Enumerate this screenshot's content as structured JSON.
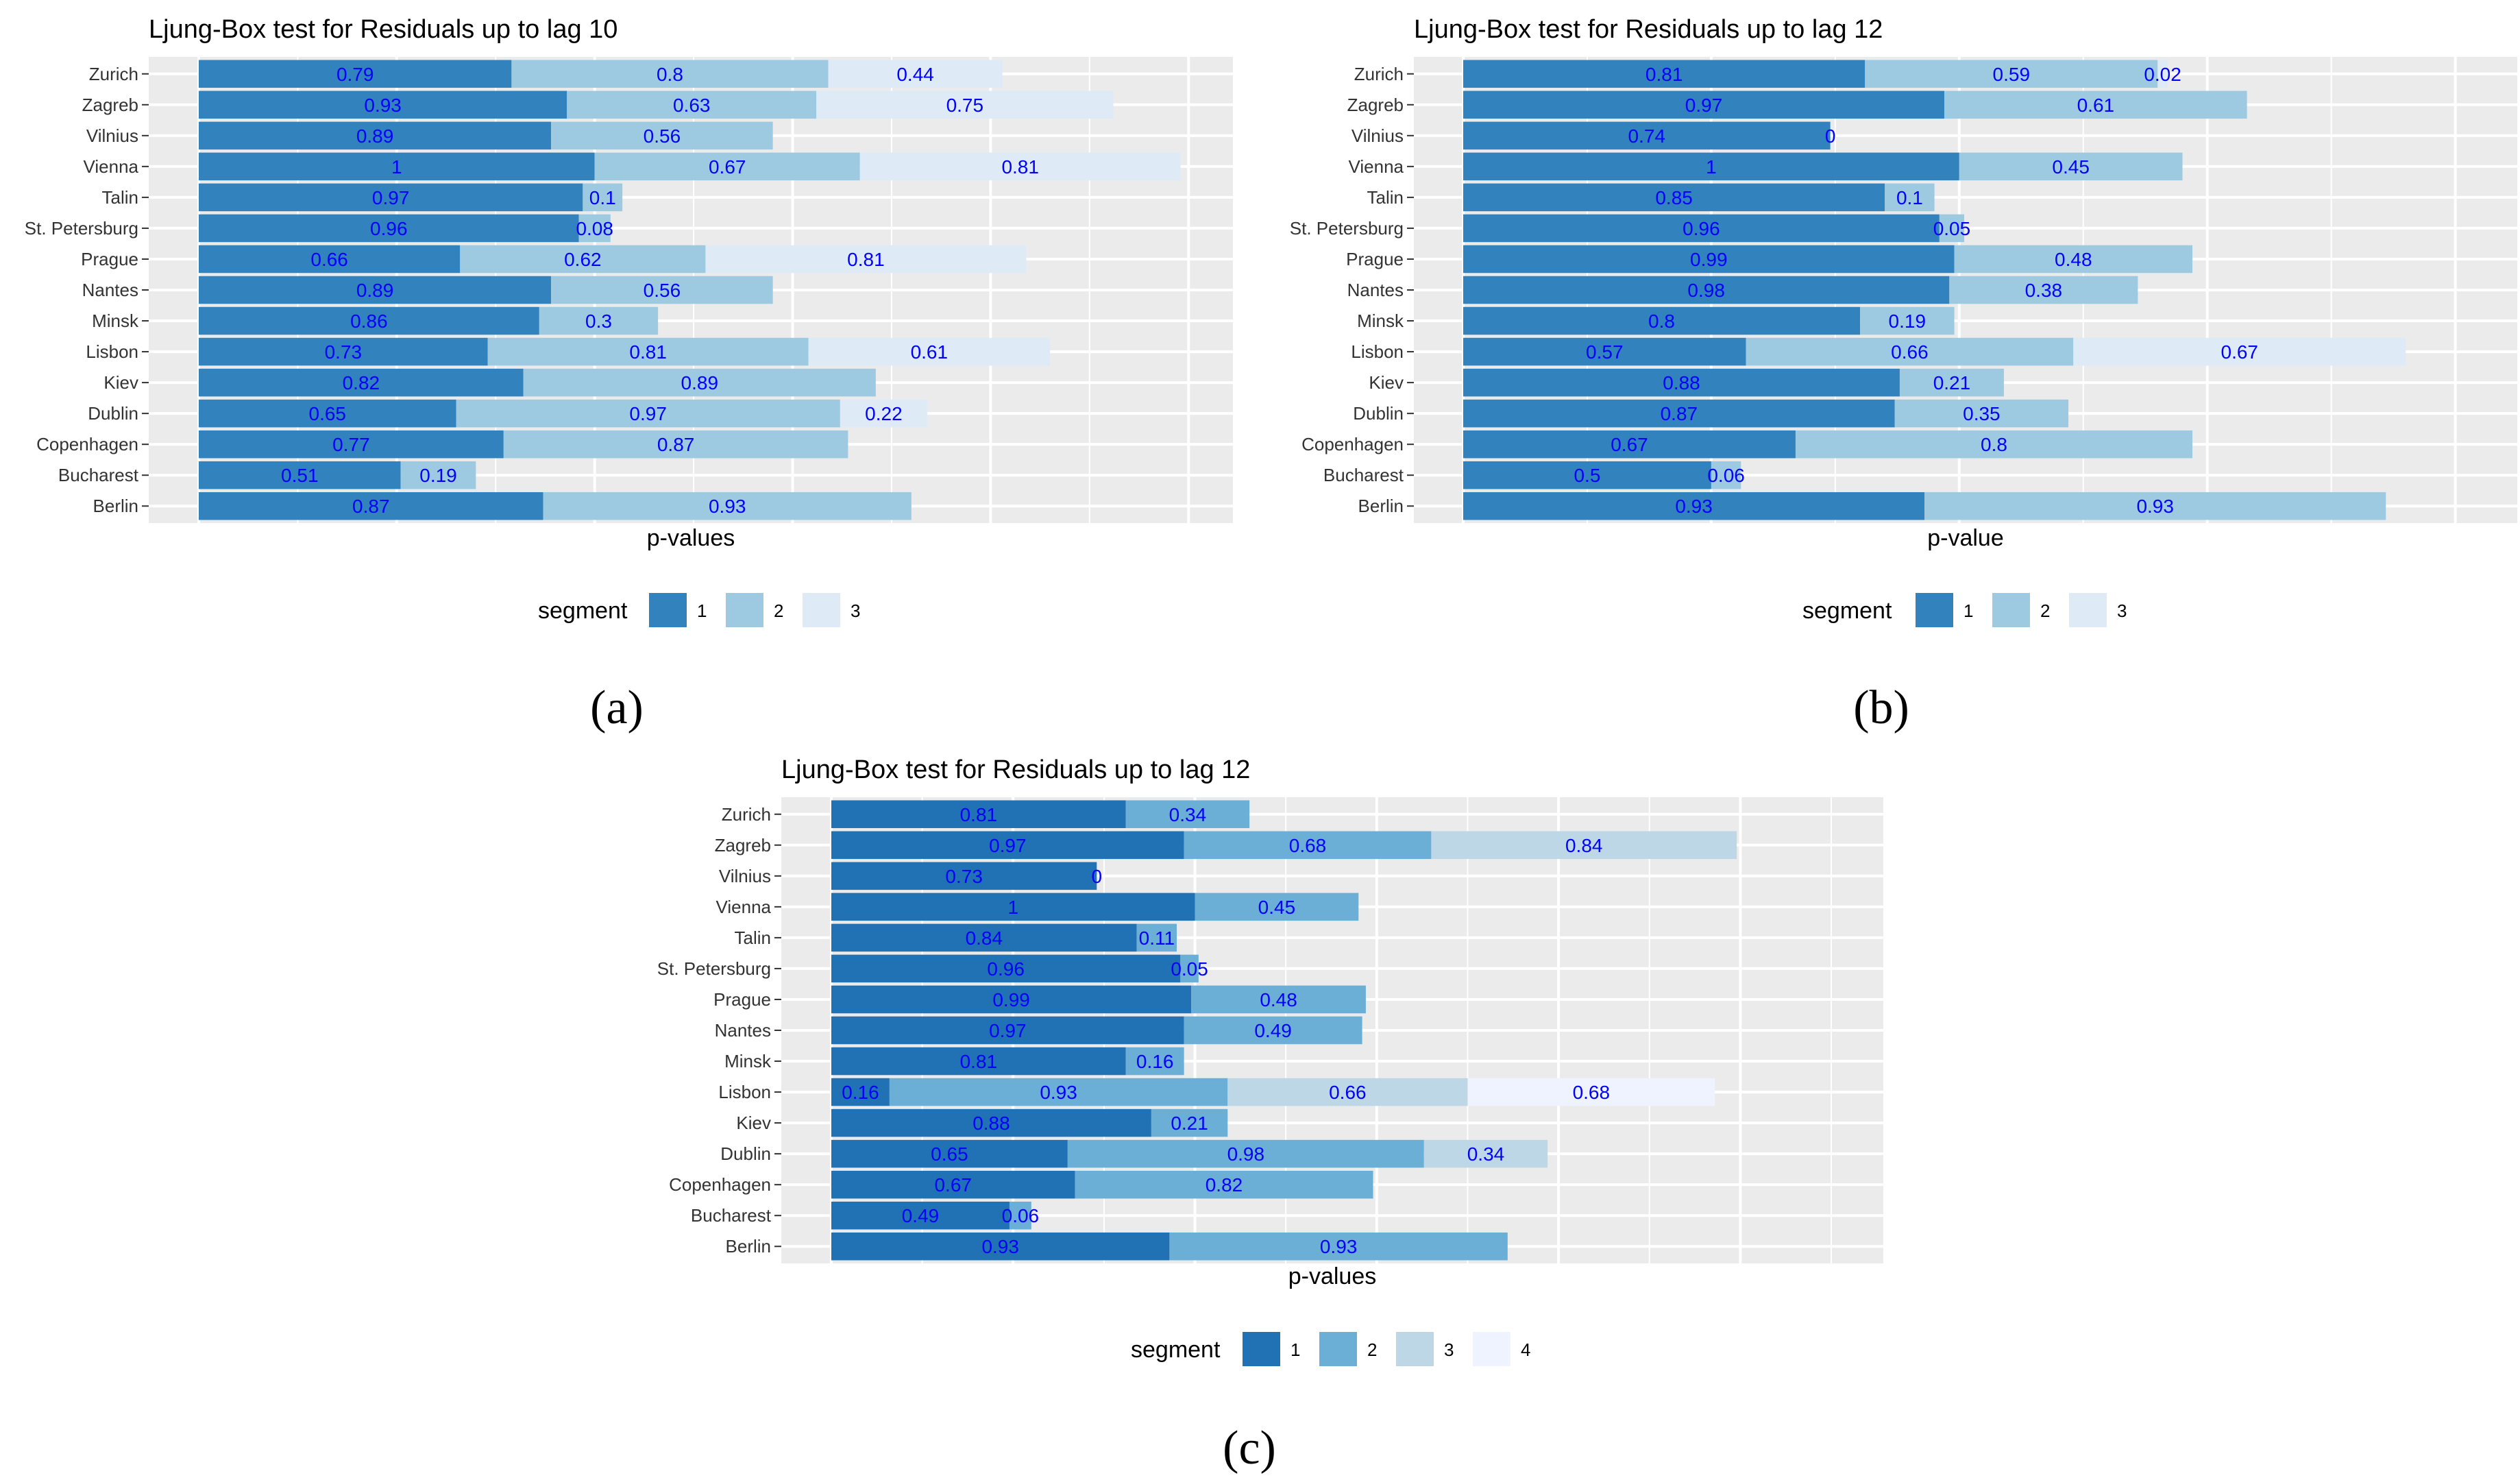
{
  "colors": {
    "panel_bg": "#ebebeb",
    "grid": "#ffffff",
    "label": "#0000ff",
    "seg3_blue": [
      "#3182bd",
      "#9ecae1",
      "#deebf7"
    ],
    "seg4_blue": [
      "#2171b5",
      "#6baed6",
      "#bdd7e7",
      "#eff3ff"
    ]
  },
  "chart_data": [
    {
      "id": "a",
      "type": "bar",
      "stacked": true,
      "orientation": "horizontal",
      "title": "Ljung-Box test for Residuals up to lag 10",
      "xlabel": "p-values",
      "ylabel": "",
      "caption": "(a)",
      "legend_title": "segment",
      "legend_position": "bottom",
      "xlim": [
        0,
        2.6
      ],
      "categories": [
        "Zurich",
        "Zagreb",
        "Vilnius",
        "Vienna",
        "Talin",
        "St. Petersburg",
        "Prague",
        "Nantes",
        "Minsk",
        "Lisbon",
        "Kiev",
        "Dublin",
        "Copenhagen",
        "Bucharest",
        "Berlin"
      ],
      "series": [
        {
          "name": "1",
          "values": [
            0.79,
            0.93,
            0.89,
            1,
            0.97,
            0.96,
            0.66,
            0.89,
            0.86,
            0.73,
            0.82,
            0.65,
            0.77,
            0.51,
            0.87
          ]
        },
        {
          "name": "2",
          "values": [
            0.8,
            0.63,
            0.56,
            0.67,
            0.1,
            0.08,
            0.62,
            0.56,
            0.3,
            0.81,
            0.89,
            0.97,
            0.87,
            0.19,
            0.93
          ]
        },
        {
          "name": "3",
          "values": [
            0.44,
            0.75,
            null,
            0.81,
            null,
            null,
            0.81,
            null,
            null,
            0.61,
            null,
            0.22,
            null,
            null,
            null
          ]
        }
      ]
    },
    {
      "id": "b",
      "type": "bar",
      "stacked": true,
      "orientation": "horizontal",
      "title": "Ljung-Box test for Residuals up to lag 12",
      "xlabel": "p-value",
      "ylabel": "",
      "caption": "(b)",
      "legend_title": "segment",
      "legend_position": "bottom",
      "xlim": [
        0,
        2.1
      ],
      "categories": [
        "Zurich",
        "Zagreb",
        "Vilnius",
        "Vienna",
        "Talin",
        "St. Petersburg",
        "Prague",
        "Nantes",
        "Minsk",
        "Lisbon",
        "Kiev",
        "Dublin",
        "Copenhagen",
        "Bucharest",
        "Berlin"
      ],
      "series": [
        {
          "name": "1",
          "values": [
            0.81,
            0.97,
            0.74,
            1,
            0.85,
            0.96,
            0.99,
            0.98,
            0.8,
            0.57,
            0.88,
            0.87,
            0.67,
            0.5,
            0.93
          ]
        },
        {
          "name": "2",
          "values": [
            0.59,
            0.61,
            0,
            0.45,
            0.1,
            0.05,
            0.48,
            0.38,
            0.19,
            0.66,
            0.21,
            0.35,
            0.8,
            0.06,
            0.93
          ]
        },
        {
          "name": "3",
          "values": [
            0.02,
            null,
            null,
            null,
            null,
            null,
            null,
            null,
            null,
            0.67,
            null,
            null,
            null,
            null,
            null
          ]
        }
      ]
    },
    {
      "id": "c",
      "type": "bar",
      "stacked": true,
      "orientation": "horizontal",
      "title": "Ljung-Box test for Residuals up to lag 12",
      "xlabel": "p-values",
      "ylabel": "",
      "caption": "(c)",
      "legend_title": "segment",
      "legend_position": "bottom",
      "xlim": [
        0,
        2.75
      ],
      "categories": [
        "Zurich",
        "Zagreb",
        "Vilnius",
        "Vienna",
        "Talin",
        "St. Petersburg",
        "Prague",
        "Nantes",
        "Minsk",
        "Lisbon",
        "Kiev",
        "Dublin",
        "Copenhagen",
        "Bucharest",
        "Berlin"
      ],
      "series": [
        {
          "name": "1",
          "values": [
            0.81,
            0.97,
            0.73,
            1,
            0.84,
            0.96,
            0.99,
            0.97,
            0.81,
            0.16,
            0.88,
            0.65,
            0.67,
            0.49,
            0.93
          ]
        },
        {
          "name": "2",
          "values": [
            0.34,
            0.68,
            0,
            0.45,
            0.11,
            0.05,
            0.48,
            0.49,
            0.16,
            0.93,
            0.21,
            0.98,
            0.82,
            0.06,
            0.93
          ]
        },
        {
          "name": "3",
          "values": [
            null,
            0.84,
            null,
            null,
            null,
            null,
            null,
            null,
            null,
            0.66,
            null,
            0.34,
            null,
            null,
            null
          ]
        },
        {
          "name": "4",
          "values": [
            null,
            null,
            null,
            null,
            null,
            null,
            null,
            null,
            null,
            0.68,
            null,
            null,
            null,
            null,
            null
          ]
        }
      ]
    }
  ]
}
